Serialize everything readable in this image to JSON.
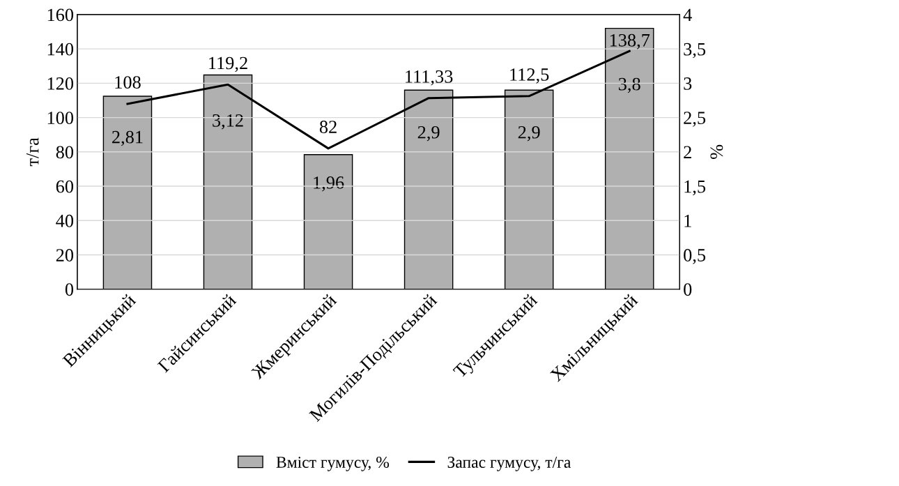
{
  "chart_data": {
    "type": "bar",
    "categories": [
      "Вінницький",
      "Гайсинський",
      "Жмеринський",
      "Могилів-Подільський",
      "Тульчинський",
      "Хмільницький"
    ],
    "series": [
      {
        "name": "Вміст гумусу, %",
        "axis": "y2",
        "color": "#b0b0b0",
        "values": [
          2.81,
          3.12,
          1.96,
          2.9,
          2.9,
          3.8
        ],
        "value_labels": [
          "2,81",
          "3,12",
          "1,96",
          "2,9",
          "2,9",
          "3,8"
        ]
      },
      {
        "name": "Запас гумусу, т/га",
        "type": "line",
        "axis": "y",
        "color": "#000000",
        "values": [
          108,
          119.2,
          82,
          111.33,
          112.5,
          138.7
        ],
        "value_labels": [
          "108",
          "119,2",
          "82",
          "111,33",
          "112,5",
          "138,7"
        ]
      }
    ],
    "ylabel": "т/га",
    "y2label": "%",
    "ylim": [
      0,
      160
    ],
    "yticks": [
      0,
      20,
      40,
      60,
      80,
      100,
      120,
      140,
      160
    ],
    "y2lim": [
      0,
      4
    ],
    "y2ticks": [
      0,
      {
        "value": 0.5,
        "label": "0,5"
      },
      1,
      {
        "value": 1.5,
        "label": "1,5"
      },
      2,
      {
        "value": 2.5,
        "label": "2,5"
      },
      3,
      {
        "value": 3.5,
        "label": "3,5"
      },
      4
    ],
    "grid": "y",
    "legend": "bottom",
    "marker": "none",
    "line_style": "solid"
  }
}
